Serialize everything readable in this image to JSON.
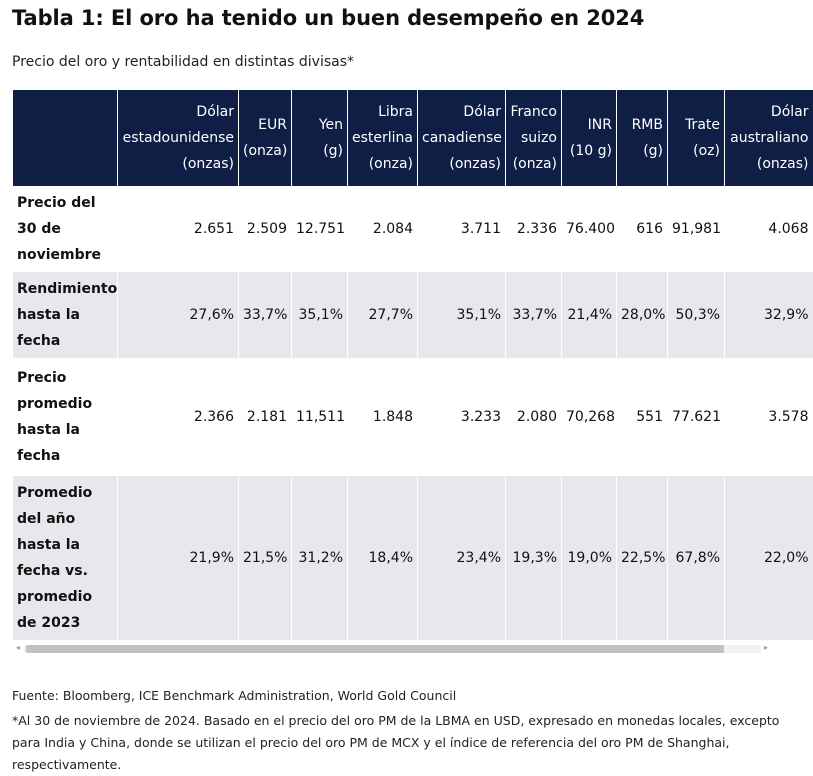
{
  "title": "Tabla 1: El oro ha tenido un buen desempeño en 2024",
  "subtitle": "Precio del oro y rentabilidad en distintas divisas*",
  "table": {
    "headers": [
      {
        "lines": [
          ""
        ]
      },
      {
        "lines": [
          "Dólar",
          "estadounidense",
          "(onzas)"
        ]
      },
      {
        "lines": [
          "EUR",
          "(onza)"
        ]
      },
      {
        "lines": [
          "Yen",
          "(g)"
        ]
      },
      {
        "lines": [
          "Libra",
          "esterlina",
          "(onza)"
        ]
      },
      {
        "lines": [
          "Dólar",
          "canadiense",
          "(onzas)"
        ]
      },
      {
        "lines": [
          "Franco",
          "suizo",
          "(onza)"
        ]
      },
      {
        "lines": [
          "INR",
          "(10 g)"
        ]
      },
      {
        "lines": [
          "RMB",
          "(g)"
        ]
      },
      {
        "lines": [
          "Trate",
          "(oz)"
        ]
      },
      {
        "lines": [
          "Dólar",
          "australiano",
          "(onzas)"
        ]
      }
    ],
    "rows": [
      {
        "label": "Precio del 30 de noviembre",
        "values": [
          "2.651",
          "2.509",
          "12.751",
          "2.084",
          "3.711",
          "2.336",
          "76.400",
          "616",
          "91,981",
          "4.068"
        ]
      },
      {
        "label": "Rendimiento hasta la fecha",
        "values": [
          "27,6%",
          "33,7%",
          "35,1%",
          "27,7%",
          "35,1%",
          "33,7%",
          "21,4%",
          "28,0%",
          "50,3%",
          "32,9%"
        ]
      },
      {
        "label": "Precio promedio hasta la fecha",
        "values": [
          "2.366",
          "2.181",
          "11,511",
          "1.848",
          "3.233",
          "2.080",
          "70,268",
          "551",
          "77.621",
          "3.578"
        ]
      },
      {
        "label": "Promedio del año hasta la fecha vs. promedio de 2023",
        "values": [
          "21,9%",
          "21,5%",
          "31,2%",
          "18,4%",
          "23,4%",
          "19,3%",
          "19,0%",
          "22,5%",
          "67,8%",
          "22,0%"
        ]
      }
    ]
  },
  "scrollbar": {
    "left_arrow": "◂",
    "right_arrow": "▸"
  },
  "footer": {
    "source": "Fuente: Bloomberg, ICE Benchmark Administration, World Gold Council",
    "note": "*Al 30 de noviembre de 2024. Basado en el precio del oro PM de la LBMA en USD, expresado en monedas locales, excepto para India y China, donde se utilizan el precio del oro PM de MCX y el índice de referencia del oro PM de Shanghai, respectivamente."
  }
}
